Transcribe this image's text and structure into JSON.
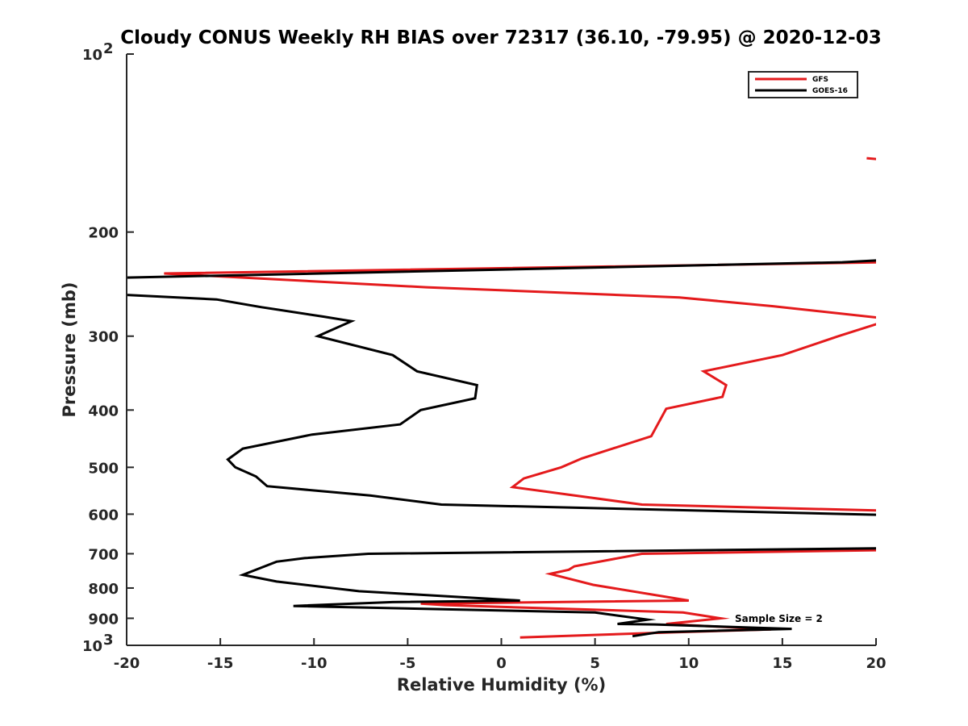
{
  "chart_data": {
    "type": "line",
    "title": "Cloudy CONUS Weekly RH BIAS over 72317 (36.10, -79.95) @ 2020-12-03",
    "xlabel": "Relative Humidity (%)",
    "ylabel": "Pressure (mb)",
    "xlim": [
      -20,
      20
    ],
    "ylim": [
      100,
      1000
    ],
    "y_scale": "log",
    "y_reversed": true,
    "x_ticks": [
      -20,
      -15,
      -10,
      -5,
      0,
      5,
      10,
      15,
      20
    ],
    "x_tick_labels": [
      "-20",
      "-15",
      "-10",
      "-5",
      "0",
      "5",
      "10",
      "15",
      "20"
    ],
    "y_ticks": [
      100,
      200,
      300,
      400,
      500,
      600,
      700,
      800,
      900,
      1000
    ],
    "y_tick_labels": [
      "",
      "200",
      "300",
      "400",
      "500",
      "600",
      "700",
      "800",
      "900",
      ""
    ],
    "y_end_labels": [
      {
        "value": 100,
        "base": "10",
        "exp": "2"
      },
      {
        "value": 1000,
        "base": "10",
        "exp": "3"
      }
    ],
    "grid": false,
    "legend": "top-right",
    "annotation": "Sample Size = 2",
    "series": [
      {
        "name": "GFS",
        "color": "#e41a1c",
        "segments": [
          [
            [
              19.5,
              150
            ],
            [
              20.5,
              151
            ]
          ],
          [
            [
              20.5,
              225
            ],
            [
              -18.0,
              235
            ],
            [
              -4.0,
              248
            ],
            [
              9.5,
              258
            ],
            [
              14.5,
              267
            ],
            [
              20.5,
              280
            ],
            [
              20.5,
              283
            ],
            [
              18.0,
              300
            ],
            [
              15.0,
              323
            ],
            [
              10.8,
              344
            ],
            [
              12.0,
              363
            ],
            [
              11.8,
              380
            ],
            [
              8.8,
              398
            ],
            [
              8.0,
              443
            ],
            [
              4.3,
              483
            ],
            [
              3.2,
              500
            ],
            [
              1.2,
              522
            ],
            [
              0.6,
              540
            ],
            [
              7.5,
              578
            ],
            [
              20.5,
              592
            ]
          ],
          [
            [
              20.5,
              690
            ],
            [
              7.5,
              700
            ],
            [
              3.9,
              735
            ],
            [
              3.6,
              745
            ],
            [
              2.6,
              757
            ],
            [
              4.9,
              790
            ],
            [
              10.0,
              840
            ],
            [
              -4.3,
              850
            ],
            [
              -3.0,
              855
            ],
            [
              9.7,
              880
            ],
            [
              11.7,
              900
            ],
            [
              8.8,
              920
            ],
            [
              14.4,
              940
            ],
            [
              9.3,
              950
            ],
            [
              1.0,
              970
            ]
          ]
        ]
      },
      {
        "name": "GOES-16",
        "color": "#000000",
        "segments": [
          [
            [
              20.5,
              223
            ],
            [
              18.2,
              225
            ],
            [
              -20.5,
              239
            ]
          ],
          [
            [
              -20.5,
              255
            ],
            [
              -15.2,
              260
            ],
            [
              -12.8,
              268
            ],
            [
              -9.5,
              278
            ],
            [
              -8.0,
              283
            ],
            [
              -9.8,
              300
            ],
            [
              -5.8,
              323
            ],
            [
              -4.5,
              344
            ],
            [
              -1.3,
              363
            ],
            [
              -1.4,
              382
            ],
            [
              -4.3,
              400
            ],
            [
              -5.4,
              423
            ],
            [
              -10.1,
              440
            ],
            [
              -13.8,
              465
            ],
            [
              -14.6,
              485
            ],
            [
              -14.2,
              500
            ],
            [
              -13.1,
              518
            ],
            [
              -12.5,
              538
            ],
            [
              -7.0,
              558
            ],
            [
              -3.2,
              578
            ],
            [
              20.5,
              602
            ]
          ],
          [
            [
              20.5,
              685
            ],
            [
              -7.1,
              700
            ],
            [
              -10.5,
              712
            ],
            [
              -12.0,
              722
            ],
            [
              -13.8,
              760
            ],
            [
              -12.0,
              780
            ],
            [
              -7.6,
              810
            ],
            [
              1.0,
              840
            ],
            [
              -5.8,
              845
            ],
            [
              -11.1,
              858
            ],
            [
              5.0,
              880
            ],
            [
              7.8,
              905
            ],
            [
              6.2,
              920
            ],
            [
              8.2,
              922
            ],
            [
              15.5,
              938
            ],
            [
              8.4,
              950
            ],
            [
              7.0,
              965
            ]
          ]
        ]
      }
    ]
  }
}
